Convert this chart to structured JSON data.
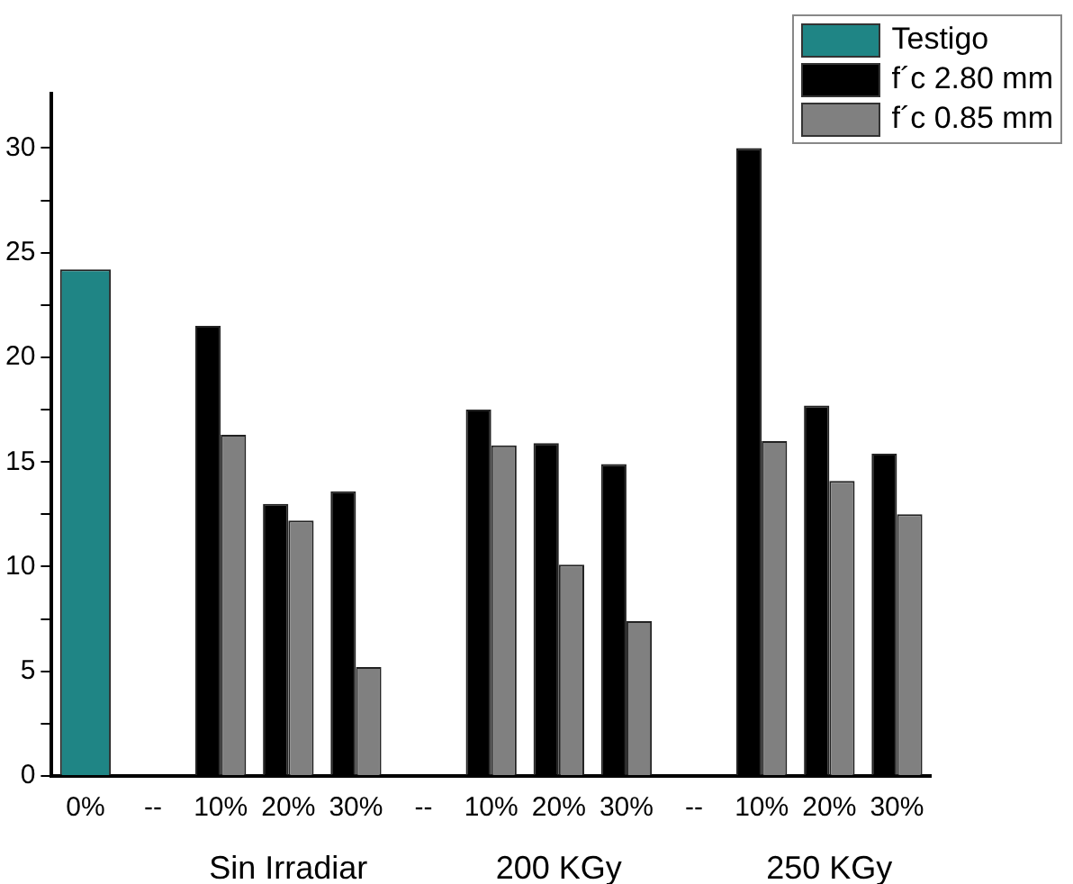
{
  "chart_data": {
    "type": "bar",
    "categories": [
      "0%",
      "--",
      "10%",
      "20%",
      "30%",
      "--",
      "10%",
      "20%",
      "30%",
      "--",
      "10%",
      "20%",
      "30%"
    ],
    "series": [
      {
        "name": "Testigo",
        "color": "#1f8585",
        "values": [
          24.2,
          null,
          null,
          null,
          null,
          null,
          null,
          null,
          null,
          null,
          null,
          null,
          null
        ]
      },
      {
        "name": "f´c 2.80 mm",
        "color": "#000000",
        "values": [
          null,
          null,
          21.5,
          13.0,
          13.6,
          null,
          17.5,
          15.9,
          14.9,
          null,
          30.0,
          17.7,
          15.4
        ]
      },
      {
        "name": "f´c 0.85 mm",
        "color": "#808080",
        "values": [
          null,
          null,
          16.3,
          12.2,
          5.2,
          null,
          15.8,
          10.1,
          7.4,
          null,
          16.0,
          14.1,
          12.5
        ]
      }
    ],
    "ylim": [
      0,
      32.6
    ],
    "yticks": [
      0,
      {
        "value": 2.5,
        "label": null
      },
      5,
      {
        "value": 7.5,
        "label": null
      },
      10,
      {
        "value": 12.5,
        "label": null
      },
      15,
      {
        "value": 17.5,
        "label": null
      },
      20,
      {
        "value": 22.5,
        "label": null
      },
      25,
      {
        "value": 27.5,
        "label": null
      },
      30
    ],
    "annotations": [
      "Sin Irradiar",
      "200 KGy",
      "250 KGy"
    ],
    "grid": false,
    "legend": "top right"
  }
}
